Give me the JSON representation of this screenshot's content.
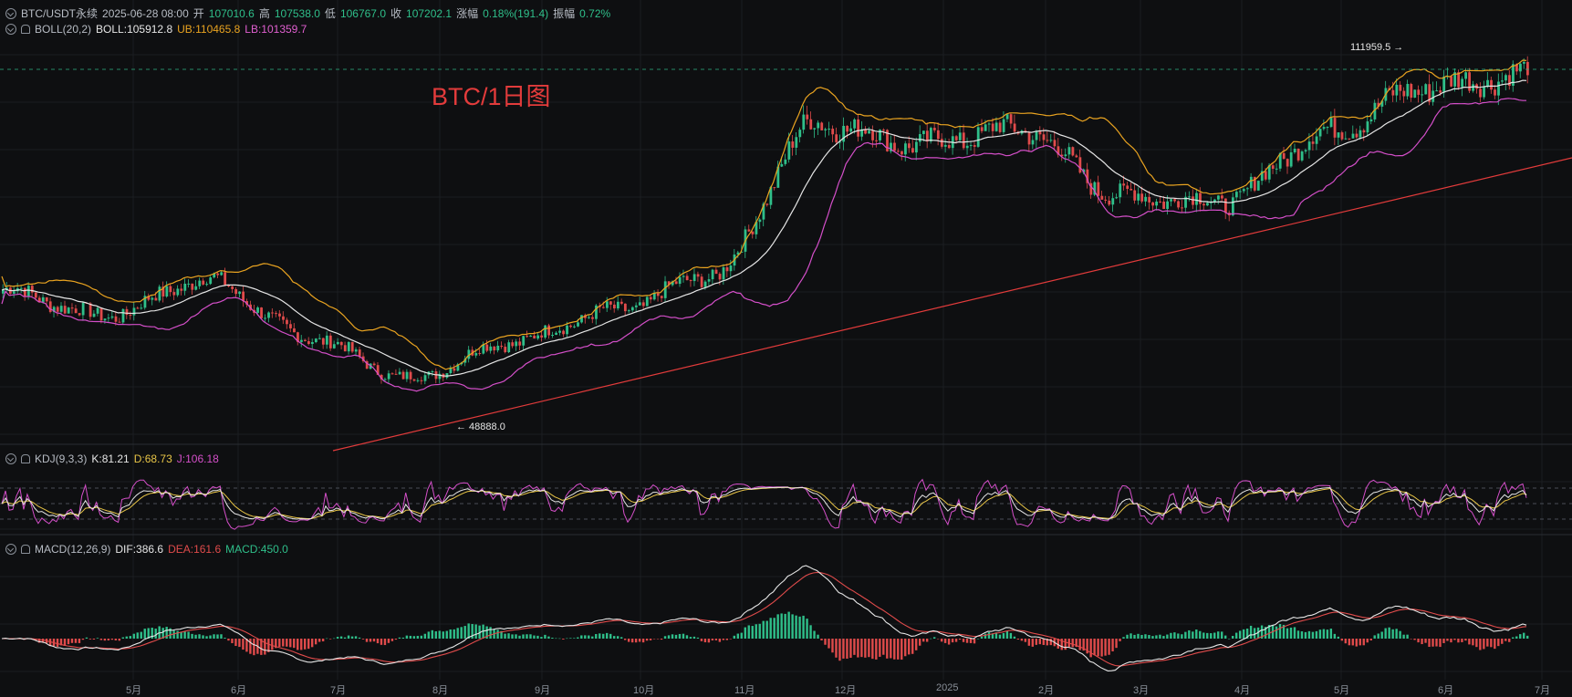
{
  "header": {
    "symbol": "BTC/USDT永续",
    "datetime": "2025-06-28 08:00",
    "open_label": "开",
    "open": "107010.6",
    "high_label": "高",
    "high": "107538.0",
    "low_label": "低",
    "low": "106767.0",
    "close_label": "收",
    "close": "107202.1",
    "change_label": "涨幅",
    "change": "0.18%(191.4)",
    "amp_label": "振幅",
    "amp": "0.72%"
  },
  "boll": {
    "name": "BOLL(20,2)",
    "mid": "BOLL:105912.8",
    "ub": "UB:110465.8",
    "lb": "LB:101359.7"
  },
  "kdj": {
    "name": "KDJ(9,3,3)",
    "k": "K:81.21",
    "d": "D:68.73",
    "j": "J:106.18"
  },
  "macd": {
    "name": "MACD(12,26,9)",
    "dif": "DIF:386.6",
    "dea": "DEA:161.6",
    "macd": "MACD:450.0"
  },
  "annotation": "BTC/1日图",
  "marks": {
    "high_note": "111959.5 →",
    "low_note": "← 48888.0"
  },
  "months": [
    "5月",
    "6月",
    "7月",
    "8月",
    "9月",
    "10月",
    "11月",
    "12月",
    "2025",
    "2月",
    "3月",
    "4月",
    "5月",
    "6月",
    "7月"
  ],
  "colors": {
    "up": "#2fbf8a",
    "down": "#e04b4b",
    "mid": "#e6e6e6",
    "ub": "#e9a320",
    "lb": "#d44fc9",
    "k": "#e6e6e6",
    "d": "#e8c547",
    "j": "#d44fc9",
    "trend": "#e23b3b"
  },
  "chart_data": {
    "type": "candlestick",
    "title": "BTC/1日图",
    "price_anchors": {
      "high": 111959.5,
      "low": 48888.0,
      "last_close": 107202.1
    },
    "close_path_key_points": [
      {
        "x": "4月",
        "y": 66000
      },
      {
        "x": "5月",
        "y": 61000
      },
      {
        "x": "6月",
        "y": 68000
      },
      {
        "x": "7月",
        "y": 57000
      },
      {
        "x": "8月",
        "y": 49000
      },
      {
        "x": "9月",
        "y": 56000
      },
      {
        "x": "10月",
        "y": 62000
      },
      {
        "x": "11月",
        "y": 69000
      },
      {
        "x": "12月",
        "y": 98000
      },
      {
        "x": "2025",
        "y": 94000
      },
      {
        "x": "2月",
        "y": 97000
      },
      {
        "x": "3月",
        "y": 84000
      },
      {
        "x": "4月",
        "y": 83000
      },
      {
        "x": "5月",
        "y": 96000
      },
      {
        "x": "6月",
        "y": 105000
      },
      {
        "x": "7月",
        "y": 107202
      }
    ],
    "indicators": [
      "BOLL(20,2)",
      "KDJ(9,3,3)",
      "MACD(12,26,9)"
    ]
  }
}
